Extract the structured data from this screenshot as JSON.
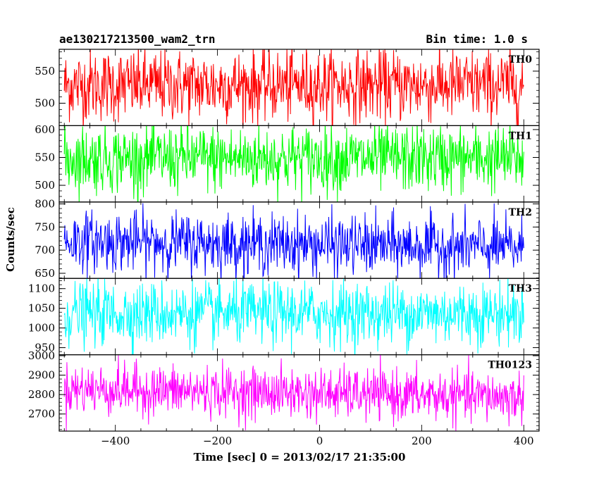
{
  "chart_data": {
    "type": "line",
    "title_left": "ae130217213500_wam2_trn",
    "title_right": "Bin time: 1.0 s",
    "xlabel": "Time [sec] 0 = 2013/02/17 21:35:00",
    "ylabel": "Counts/sec",
    "xlim": [
      -510,
      430
    ],
    "x_ticks": [
      -400,
      -200,
      0,
      200,
      400
    ],
    "x_range": [
      -500,
      400
    ],
    "bin_time_s": 1.0,
    "grid": false,
    "panels": [
      {
        "name": "TH0",
        "color": "#ff0000",
        "ylim": [
          465,
          584
        ],
        "y_ticks": [
          500,
          550
        ],
        "mean": 528,
        "amplitude": 28
      },
      {
        "name": "TH1",
        "color": "#00ff00",
        "ylim": [
          470,
          607
        ],
        "y_ticks": [
          500,
          550,
          600
        ],
        "mean": 548,
        "amplitude": 30
      },
      {
        "name": "TH2",
        "color": "#0000ff",
        "ylim": [
          639,
          804
        ],
        "y_ticks": [
          650,
          700,
          750,
          800
        ],
        "mean": 720,
        "amplitude": 32,
        "trend": -15
      },
      {
        "name": "TH3",
        "color": "#00ffff",
        "ylim": [
          932,
          1126
        ],
        "y_ticks": [
          950,
          1000,
          1050,
          1100
        ],
        "mean": 1037,
        "amplitude": 40
      },
      {
        "name": "TH0123",
        "color": "#ff00ff",
        "ylim": [
          2612,
          3005
        ],
        "y_ticks": [
          2700,
          2800,
          2900,
          3000
        ],
        "mean": 2830,
        "amplitude": 65,
        "trend": -45
      }
    ]
  }
}
